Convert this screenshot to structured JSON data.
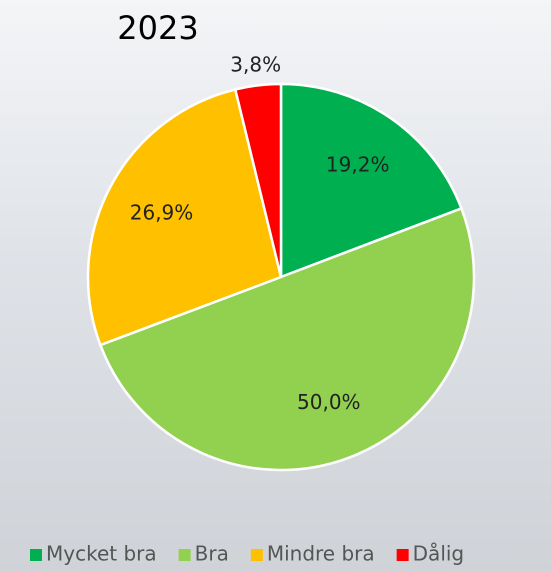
{
  "chart_data": {
    "type": "pie",
    "title": "2023",
    "categories": [
      "Mycket bra",
      "Bra",
      "Mindre bra",
      "Dålig"
    ],
    "values": [
      19.2,
      50.0,
      26.9,
      3.8
    ],
    "value_labels": [
      "19,2%",
      "50,0%",
      "26,9%",
      "3,8%"
    ],
    "colors": [
      "#00b050",
      "#92d050",
      "#ffc000",
      "#ff0000"
    ],
    "legend": "bottom"
  }
}
